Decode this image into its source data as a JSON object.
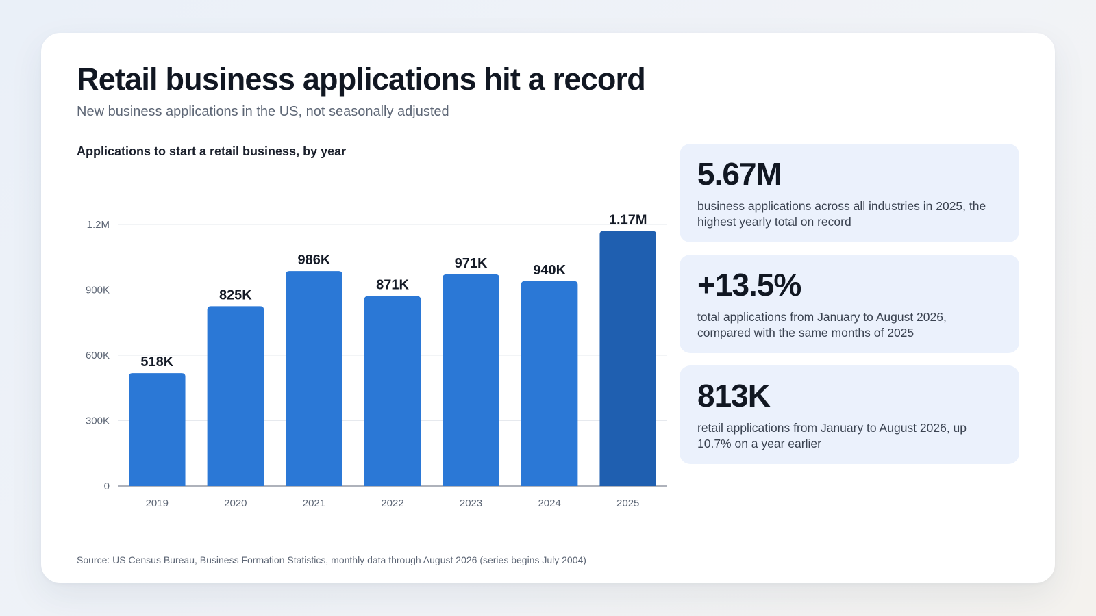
{
  "title": "Retail business applications hit a record",
  "subtitle": "New business applications in the US, not seasonally adjusted",
  "chart_data": {
    "type": "bar",
    "title": "Applications to start a retail business, by year",
    "categories": [
      "2019",
      "2020",
      "2021",
      "2022",
      "2023",
      "2024",
      "2025"
    ],
    "values": [
      518000,
      825000,
      986000,
      871000,
      971000,
      940000,
      1170000
    ],
    "value_labels": [
      "518K",
      "825K",
      "986K",
      "871K",
      "971K",
      "940K",
      "1.17M"
    ],
    "ylim": [
      0,
      1200000
    ],
    "yticks": [
      0,
      300000,
      600000,
      900000,
      1200000
    ],
    "ytick_labels": [
      "0",
      "300K",
      "600K",
      "900K",
      "1.2M"
    ],
    "grid": true,
    "colors": {
      "bar": "#2b78d6",
      "highlight": "#1f5fb0"
    },
    "highlight_index": 6
  },
  "stats": [
    {
      "value": "5.67M",
      "desc": "business applications across all industries in 2025, the highest yearly total on record"
    },
    {
      "value": "+13.5%",
      "desc": "total applications from January to August 2026, compared with the same months of 2025"
    },
    {
      "value": "813K",
      "desc": "retail applications from January to August 2026, up 10.7% on a year earlier"
    }
  ],
  "source": "Source: US Census Bureau, Business Formation Statistics, monthly data through August 2026 (series begins July 2004)"
}
